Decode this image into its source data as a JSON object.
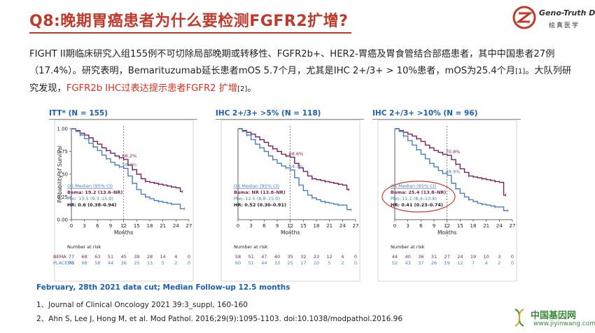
{
  "header": {
    "title": "Q8:晚期胃癌患者为什么要检测FGFR2扩增?",
    "logo_text": "Geno-Truth Dx.",
    "logo_sub": "绘真医学"
  },
  "paragraph": {
    "part1": "FIGHT II期临床研究入组155例不可切除局部晚期或转移性、FGFR2b+、HER2-胃癌及胃食管结合部癌患者，其中中国患者27例（17.4%）。研究表明，Bemarituzumab延长患者mOS 5.7个月，尤其是IHC 2+/3+ > 10%患者，mOS为25.4个月",
    "ref1": "[1]",
    "part2": "。大队列研究发现，",
    "red": "FGFR2b IHC过表达提示患者FGFR2 扩增",
    "ref2": "[2]",
    "part3": "。"
  },
  "chart_data": [
    {
      "type": "line",
      "title": "ITT* (N = 155)",
      "ylabel": "Probability of Survival",
      "xlabel": "Months",
      "x_ticks": [
        0,
        3,
        6,
        9,
        12,
        15,
        18,
        21,
        24,
        27
      ],
      "y_ticks": [
        "0.00",
        "0.25",
        "0.50",
        "0.75",
        "1.00"
      ],
      "xlim": [
        0,
        27
      ],
      "ylim": [
        0,
        1
      ],
      "marker_month": 12,
      "series": [
        {
          "name": "BEMA",
          "color": "#7b1f5a",
          "label_at_12": "66.2%",
          "label_y": 0.662,
          "points": [
            [
              0,
              1
            ],
            [
              1,
              0.98
            ],
            [
              2,
              0.95
            ],
            [
              3,
              0.93
            ],
            [
              4,
              0.9
            ],
            [
              5,
              0.86
            ],
            [
              6,
              0.83
            ],
            [
              7,
              0.79
            ],
            [
              8,
              0.76
            ],
            [
              9,
              0.73
            ],
            [
              10,
              0.7
            ],
            [
              11,
              0.68
            ],
            [
              12,
              0.662
            ],
            [
              13,
              0.6
            ],
            [
              14,
              0.55
            ],
            [
              15,
              0.5
            ],
            [
              16,
              0.45
            ],
            [
              17,
              0.42
            ],
            [
              18,
              0.41
            ],
            [
              19,
              0.4
            ],
            [
              20,
              0.39
            ],
            [
              21,
              0.38
            ],
            [
              22,
              0.37
            ],
            [
              23,
              0.36
            ],
            [
              24,
              0.35
            ],
            [
              25,
              0.31
            ],
            [
              25.5,
              0.31
            ]
          ]
        },
        {
          "name": "PLACEBO",
          "color": "#4a7fc1",
          "label_at_12": "56.4%",
          "label_y": 0.564,
          "points": [
            [
              0,
              1
            ],
            [
              1,
              0.97
            ],
            [
              2,
              0.93
            ],
            [
              3,
              0.89
            ],
            [
              4,
              0.84
            ],
            [
              5,
              0.8
            ],
            [
              6,
              0.76
            ],
            [
              7,
              0.71
            ],
            [
              8,
              0.67
            ],
            [
              9,
              0.63
            ],
            [
              10,
              0.6
            ],
            [
              11,
              0.58
            ],
            [
              12,
              0.564
            ],
            [
              13,
              0.48
            ],
            [
              14,
              0.4
            ],
            [
              15,
              0.33
            ],
            [
              16,
              0.28
            ],
            [
              17,
              0.25
            ],
            [
              18,
              0.23
            ],
            [
              19,
              0.21
            ],
            [
              20,
              0.2
            ],
            [
              21,
              0.19
            ],
            [
              22,
              0.18
            ],
            [
              23,
              0.17
            ],
            [
              24,
              0.17
            ],
            [
              25,
              0.12
            ],
            [
              26,
              0.12
            ]
          ]
        }
      ],
      "legend": {
        "head": "OS Median (95% CI)",
        "bema": "Bema: 19.2 (13.6–NR)",
        "pbo": "Pbo: 13.5 (9.3–15.9)",
        "hr": "HR: 0.6 (0.38–0.94)",
        "circled": false
      },
      "risk_title": "Number at risk",
      "risk": {
        "BEMA": [
          "77",
          "68",
          "63",
          "51",
          "45",
          "39",
          "28",
          "14",
          "4",
          "0"
        ],
        "PLACEBO": [
          "78",
          "68",
          "58",
          "44",
          "36",
          "25",
          "13",
          "5",
          "2",
          "0"
        ]
      },
      "risk_labels": [
        "BEMA",
        "PLACEBO"
      ]
    },
    {
      "type": "line",
      "title": "IHC 2+/3+ >5% (N = 118)",
      "ylabel": "",
      "xlabel": "Months",
      "x_ticks": [
        0,
        3,
        6,
        9,
        12,
        15,
        18,
        21,
        24,
        27
      ],
      "xlim": [
        0,
        27
      ],
      "ylim": [
        0,
        1
      ],
      "marker_month": 12,
      "series": [
        {
          "name": "BEMA",
          "color": "#7b1f5a",
          "label_at_12": "68.6%",
          "label_y": 0.686,
          "points": [
            [
              0,
              1
            ],
            [
              1,
              0.98
            ],
            [
              2,
              0.96
            ],
            [
              3,
              0.94
            ],
            [
              4,
              0.91
            ],
            [
              5,
              0.88
            ],
            [
              6,
              0.85
            ],
            [
              7,
              0.81
            ],
            [
              8,
              0.78
            ],
            [
              9,
              0.75
            ],
            [
              10,
              0.72
            ],
            [
              11,
              0.7
            ],
            [
              12,
              0.686
            ],
            [
              13,
              0.62
            ],
            [
              14,
              0.57
            ],
            [
              15,
              0.53
            ],
            [
              16,
              0.48
            ],
            [
              17,
              0.45
            ],
            [
              18,
              0.44
            ],
            [
              19,
              0.43
            ],
            [
              20,
              0.42
            ],
            [
              21,
              0.41
            ],
            [
              22,
              0.4
            ],
            [
              23,
              0.39
            ],
            [
              24,
              0.38
            ],
            [
              25,
              0.33
            ],
            [
              25.5,
              0.33
            ]
          ]
        },
        {
          "name": "PLACEBO",
          "color": "#4a7fc1",
          "label_at_12": "54.7%",
          "label_y": 0.547,
          "points": [
            [
              0,
              1
            ],
            [
              1,
              0.97
            ],
            [
              2,
              0.93
            ],
            [
              3,
              0.88
            ],
            [
              4,
              0.83
            ],
            [
              5,
              0.79
            ],
            [
              6,
              0.75
            ],
            [
              7,
              0.7
            ],
            [
              8,
              0.66
            ],
            [
              9,
              0.62
            ],
            [
              10,
              0.59
            ],
            [
              11,
              0.57
            ],
            [
              12,
              0.547
            ],
            [
              13,
              0.46
            ],
            [
              14,
              0.38
            ],
            [
              15,
              0.32
            ],
            [
              16,
              0.27
            ],
            [
              17,
              0.24
            ],
            [
              18,
              0.22
            ],
            [
              19,
              0.2
            ],
            [
              20,
              0.19
            ],
            [
              21,
              0.18
            ],
            [
              22,
              0.17
            ],
            [
              23,
              0.16
            ],
            [
              24,
              0.16
            ],
            [
              25,
              0.11
            ],
            [
              26,
              0.11
            ]
          ]
        }
      ],
      "legend": {
        "head": "OS Median (95% CI)",
        "bema": "Bema: NR (13.8–NR)",
        "pbo": "Pbo: 12.5 (8.8–15.0)",
        "hr": "HR: 0.52 (0.30–0.91)",
        "circled": false
      },
      "risk_title": "Number at risk",
      "risk": {
        "BEMA": [
          "58",
          "51",
          "47",
          "40",
          "35",
          "32",
          "23",
          "12",
          "4",
          "0"
        ],
        "PLACEBO": [
          "60",
          "51",
          "44",
          "33",
          "25",
          "17",
          "10",
          "5",
          "2",
          "0"
        ]
      },
      "risk_labels": [
        "",
        ""
      ]
    },
    {
      "type": "line",
      "title": "IHC 2+/3+ >10% (N = 96)",
      "ylabel": "",
      "xlabel": "Months",
      "x_ticks": [
        0,
        3,
        6,
        9,
        12,
        15,
        18,
        21,
        24,
        27
      ],
      "xlim": [
        0,
        27
      ],
      "ylim": [
        0,
        1
      ],
      "marker_month": 12,
      "series": [
        {
          "name": "BEMA",
          "color": "#7b1f5a",
          "label_at_12": "70.8%",
          "label_y": 0.708,
          "points": [
            [
              0,
              1
            ],
            [
              1,
              0.98
            ],
            [
              2,
              0.96
            ],
            [
              3,
              0.94
            ],
            [
              4,
              0.92
            ],
            [
              5,
              0.89
            ],
            [
              6,
              0.86
            ],
            [
              7,
              0.82
            ],
            [
              8,
              0.79
            ],
            [
              9,
              0.76
            ],
            [
              10,
              0.74
            ],
            [
              11,
              0.72
            ],
            [
              12,
              0.708
            ],
            [
              13,
              0.66
            ],
            [
              14,
              0.61
            ],
            [
              15,
              0.56
            ],
            [
              16,
              0.52
            ],
            [
              17,
              0.48
            ],
            [
              18,
              0.47
            ],
            [
              19,
              0.46
            ],
            [
              20,
              0.45
            ],
            [
              21,
              0.44
            ],
            [
              22,
              0.43
            ],
            [
              23,
              0.42
            ],
            [
              24,
              0.41
            ],
            [
              25,
              0.27
            ],
            [
              25.5,
              0.27
            ]
          ]
        },
        {
          "name": "PLACEBO",
          "color": "#4a7fc1",
          "label_at_12": "48.9%",
          "label_y": 0.489,
          "points": [
            [
              0,
              1
            ],
            [
              1,
              0.97
            ],
            [
              2,
              0.92
            ],
            [
              3,
              0.87
            ],
            [
              4,
              0.82
            ],
            [
              5,
              0.77
            ],
            [
              6,
              0.72
            ],
            [
              7,
              0.67
            ],
            [
              8,
              0.62
            ],
            [
              9,
              0.58
            ],
            [
              10,
              0.54
            ],
            [
              11,
              0.51
            ],
            [
              12,
              0.489
            ],
            [
              13,
              0.4
            ],
            [
              14,
              0.34
            ],
            [
              15,
              0.29
            ],
            [
              16,
              0.25
            ],
            [
              17,
              0.22
            ],
            [
              18,
              0.2
            ],
            [
              19,
              0.18
            ],
            [
              20,
              0.17
            ],
            [
              21,
              0.16
            ],
            [
              22,
              0.15
            ],
            [
              23,
              0.14
            ],
            [
              24,
              0.14
            ],
            [
              25,
              0.1
            ],
            [
              26,
              0.1
            ]
          ]
        }
      ],
      "legend": {
        "head": "OS Median (95% CI)",
        "bema": "Bema: 25.4 (13.8–NR)",
        "pbo": "Pbo: 11.1 (8.4–13.8)",
        "hr": "HR: 0.41 (0.23–0.74)",
        "circled": true
      },
      "risk_title": "Number at risk",
      "risk": {
        "BEMA": [
          "44",
          "40",
          "36",
          "31",
          "27",
          "24",
          "19",
          "10",
          "3",
          "0"
        ],
        "PLACEBO": [
          "52",
          "43",
          "37",
          "26",
          "19",
          "12",
          "7",
          "4",
          "2",
          "0"
        ]
      },
      "risk_labels": [
        "",
        ""
      ]
    }
  ],
  "datacut": "February, 28th 2021 data cut; Median Follow-up 12.5 months",
  "references": [
    "1、Journal of Clinical Oncology 2021 39:3_suppl, 160-160",
    "2、Ahn S, Lee J, Hong M, et al. Mod Pathol. 2016;29(9):1095-1103. doi:10.1038/modpathol.2016.96"
  ],
  "watermark": {
    "text": "中国基因网",
    "url": "www.jiyinwang.com"
  },
  "colors": {
    "accent": "#c0392b",
    "bema": "#7b1f5a",
    "placebo": "#4a7fc1",
    "title_blue": "#1a5fb4"
  }
}
